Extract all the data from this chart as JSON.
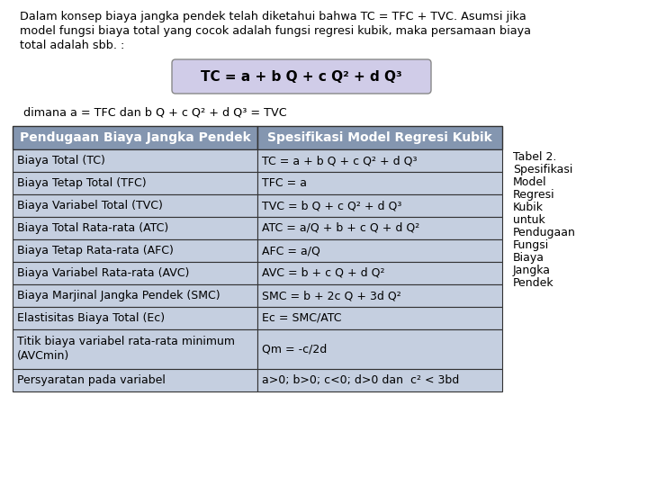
{
  "bg_color": "#ffffff",
  "intro_line1": "Dalam konsep biaya jangka pendek telah diketahui bahwa TC = TFC + TVC. Asumsi jika",
  "intro_line2": "model fungsi biaya total yang cocok adalah fungsi regresi kubik, maka persamaan biaya",
  "intro_line3": "total adalah sbb. :",
  "formula": "TC = a + b Q + c Q² + d Q³",
  "formula_box_color": "#d0cce8",
  "formula_border_color": "#888888",
  "dimana_text": " dimana a = TFC dan b Q + c Q² + d Q³ = TVC",
  "table_header_bg": "#8496b0",
  "table_row_bg": "#c5cfe0",
  "table_border": "#333333",
  "col1_header": "Pendugaan Biaya Jangka Pendek",
  "col2_header": "Spesifikasi Model Regresi Kubik",
  "col1_rows": [
    "Biaya Total (TC)",
    "Biaya Tetap Total (TFC)",
    "Biaya Variabel Total (TVC)",
    "Biaya Total Rata-rata (ATC)",
    "Biaya Tetap Rata-rata (AFC)",
    "Biaya Variabel Rata-rata (AVC)",
    "Biaya Marjinal Jangka Pendek (SMC)",
    "Elastisitas Biaya Total (Ec)",
    "Titik biaya variabel rata-rata minimum\n(AVCmin)",
    "Persyaratan pada variabel"
  ],
  "col2_rows": [
    "TC = a + b Q + c Q² + d Q³",
    "TFC = a",
    "TVC = b Q + c Q² + d Q³",
    "ATC = a/Q + b + c Q + d Q²",
    "AFC = a/Q",
    "AVC = b + c Q + d Q²",
    "SMC = b + 2c Q + 3d Q²",
    "Ec = SMC/ATC",
    "Qm = -c/2d",
    "a>0; b>0; c<0; d>0 dan  c² < 3bd"
  ],
  "caption_lines": [
    "Tabel 2.",
    "Spesifikasi",
    "Model",
    "Regresi",
    "Kubik",
    "untuk",
    "Pendugaan",
    "Fungsi",
    "Biaya",
    "Jangka",
    "Pendek"
  ],
  "text_color": "#000000",
  "font_size_intro": 9.2,
  "font_size_formula": 11,
  "font_size_table_hdr": 10,
  "font_size_table": 9,
  "font_size_caption": 9
}
